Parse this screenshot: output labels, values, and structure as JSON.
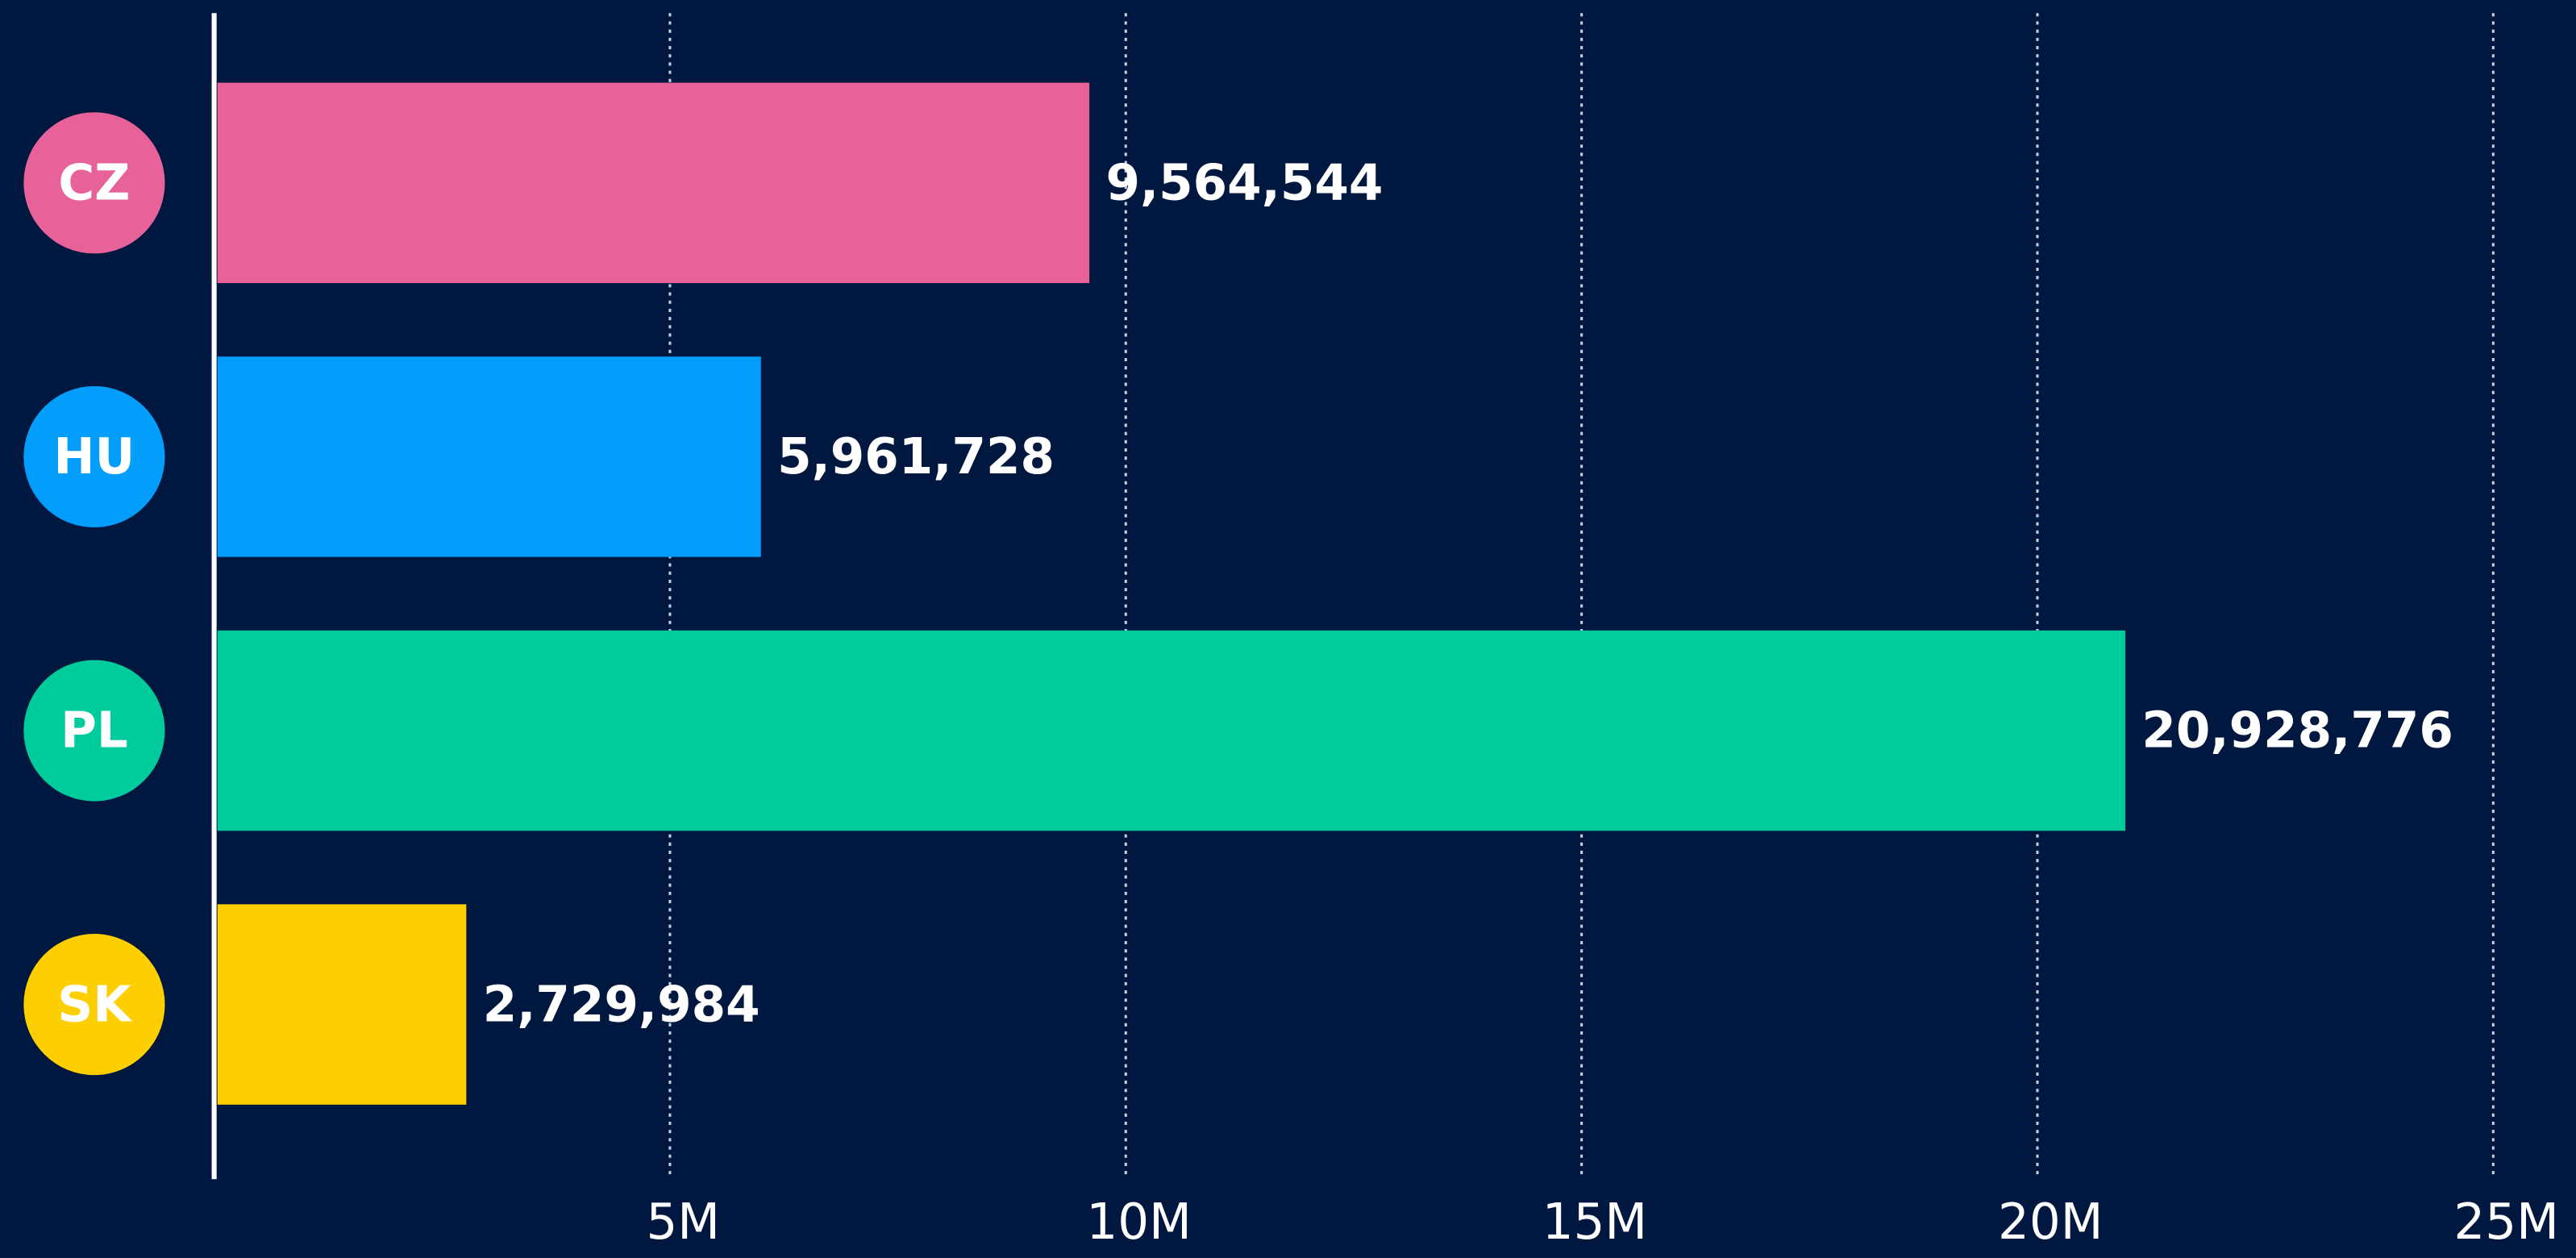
{
  "chart_data": {
    "type": "bar",
    "orientation": "horizontal",
    "categories": [
      "CZ",
      "HU",
      "PL",
      "SK"
    ],
    "values": [
      9564544,
      5961728,
      20928776,
      2729984
    ],
    "value_labels": [
      "9,564,544",
      "5,961,728",
      "20,928,776",
      "2,729,984"
    ],
    "colors": [
      "#e8629a",
      "#039dfc",
      "#00cb9c",
      "#fdcf00"
    ],
    "xlim": [
      0,
      25000000
    ],
    "xticks": [
      {
        "value": 5000000,
        "label": "5M"
      },
      {
        "value": 10000000,
        "label": "10M"
      },
      {
        "value": 15000000,
        "label": "15M"
      },
      {
        "value": 20000000,
        "label": "20M"
      },
      {
        "value": 25000000,
        "label": "25M"
      }
    ],
    "grid": true
  }
}
